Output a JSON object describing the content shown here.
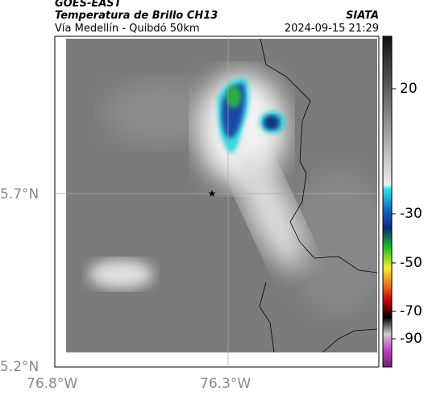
{
  "header": {
    "source": "GOES-EAST",
    "title": "Temperatura de Brillo CH13",
    "subtitle": "Vía Medellín - Quibdó 50km",
    "credit": "SIATA",
    "timestamp": "2024-09-15 21:29"
  },
  "map": {
    "lat_labels": [
      "5.7°N",
      "5.2°N"
    ],
    "lon_labels": [
      "76.8°W",
      "76.3°W"
    ]
  },
  "colorbar": {
    "ticks": [
      20,
      -30,
      -50,
      -70,
      -90
    ]
  }
}
